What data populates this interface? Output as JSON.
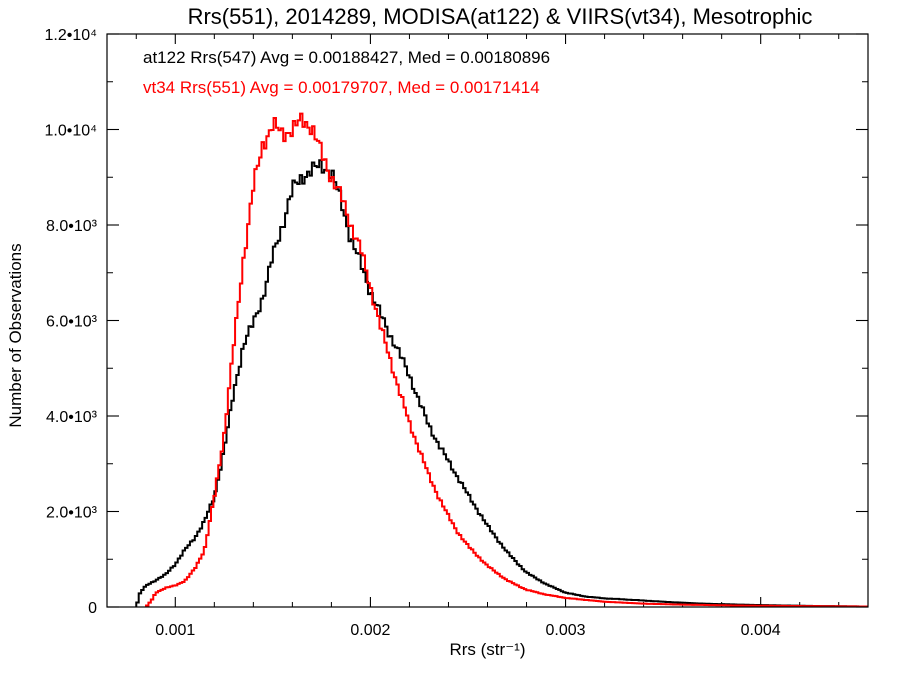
{
  "chart_data": {
    "type": "line",
    "title": "Rrs(551), 2014289, MODISA(at122) & VIIRS(vt34), Mesotrophic",
    "xlabel": "Rrs (str⁻¹)",
    "ylabel": "Number of Observations",
    "xlim": [
      0.00065,
      0.00455
    ],
    "ylim": [
      0,
      12000
    ],
    "x_ticks": [
      {
        "value": 0.001,
        "label": "0.001"
      },
      {
        "value": 0.002,
        "label": "0.002"
      },
      {
        "value": 0.003,
        "label": "0.003"
      },
      {
        "value": 0.004,
        "label": "0.004"
      }
    ],
    "y_ticks": [
      {
        "value": 0,
        "label": "0"
      },
      {
        "value": 2000,
        "label": "2.0•10³"
      },
      {
        "value": 4000,
        "label": "4.0•10³"
      },
      {
        "value": 6000,
        "label": "6.0•10³"
      },
      {
        "value": 8000,
        "label": "8.0•10³"
      },
      {
        "value": 10000,
        "label": "1.0•10⁴"
      },
      {
        "value": 12000,
        "label": "1.2•10⁴"
      }
    ],
    "grid": false,
    "legend_position": "top-left",
    "series": [
      {
        "name": "at122 Rrs(547) Avg = 0.00188427, Med = 0.00180896",
        "color": "#000000",
        "x": [
          0.0008,
          0.00082,
          0.00085,
          0.0009,
          0.00095,
          0.001,
          0.00105,
          0.0011,
          0.00115,
          0.0012,
          0.00125,
          0.0013,
          0.00135,
          0.0014,
          0.00145,
          0.0015,
          0.00155,
          0.0016,
          0.00165,
          0.0017,
          0.00175,
          0.0018,
          0.00185,
          0.0019,
          0.00195,
          0.002,
          0.00205,
          0.0021,
          0.00215,
          0.0022,
          0.00225,
          0.0023,
          0.00235,
          0.0024,
          0.00245,
          0.0025,
          0.0026,
          0.0027,
          0.0028,
          0.0029,
          0.003,
          0.0031,
          0.0032,
          0.0033,
          0.0035,
          0.0037,
          0.004,
          0.0043,
          0.00455
        ],
        "values": [
          0,
          300,
          450,
          560,
          680,
          900,
          1200,
          1450,
          1800,
          2300,
          3300,
          4500,
          5500,
          5950,
          6500,
          7350,
          8000,
          8750,
          9000,
          9150,
          9250,
          9100,
          8500,
          7700,
          7200,
          6600,
          6150,
          5700,
          5300,
          4850,
          4300,
          3800,
          3400,
          3050,
          2700,
          2350,
          1700,
          1150,
          720,
          480,
          300,
          220,
          180,
          160,
          110,
          70,
          40,
          20,
          10
        ]
      },
      {
        "name": "vt34 Rrs(551) Avg = 0.00179707, Med = 0.00171414",
        "color": "#ff0000",
        "x": [
          0.00085,
          0.00088,
          0.0009,
          0.00095,
          0.001,
          0.00105,
          0.0011,
          0.00115,
          0.0012,
          0.00125,
          0.0013,
          0.00135,
          0.0014,
          0.00145,
          0.0015,
          0.00155,
          0.0016,
          0.00165,
          0.0017,
          0.00175,
          0.0018,
          0.00185,
          0.0019,
          0.00195,
          0.002,
          0.00205,
          0.0021,
          0.00215,
          0.0022,
          0.00225,
          0.0023,
          0.00235,
          0.0024,
          0.00245,
          0.0025,
          0.0026,
          0.0027,
          0.0028,
          0.0029,
          0.003,
          0.0031,
          0.0032,
          0.0034,
          0.0036,
          0.0039,
          0.0042,
          0.00455
        ],
        "values": [
          0,
          150,
          300,
          400,
          450,
          550,
          800,
          1200,
          2300,
          3600,
          5500,
          7300,
          8800,
          9700,
          10100,
          9900,
          10000,
          10200,
          10050,
          9500,
          9000,
          8600,
          8000,
          7500,
          6700,
          5900,
          5200,
          4500,
          3850,
          3300,
          2750,
          2300,
          1900,
          1550,
          1280,
          860,
          560,
          360,
          260,
          190,
          150,
          110,
          70,
          50,
          30,
          20,
          10
        ]
      }
    ]
  }
}
